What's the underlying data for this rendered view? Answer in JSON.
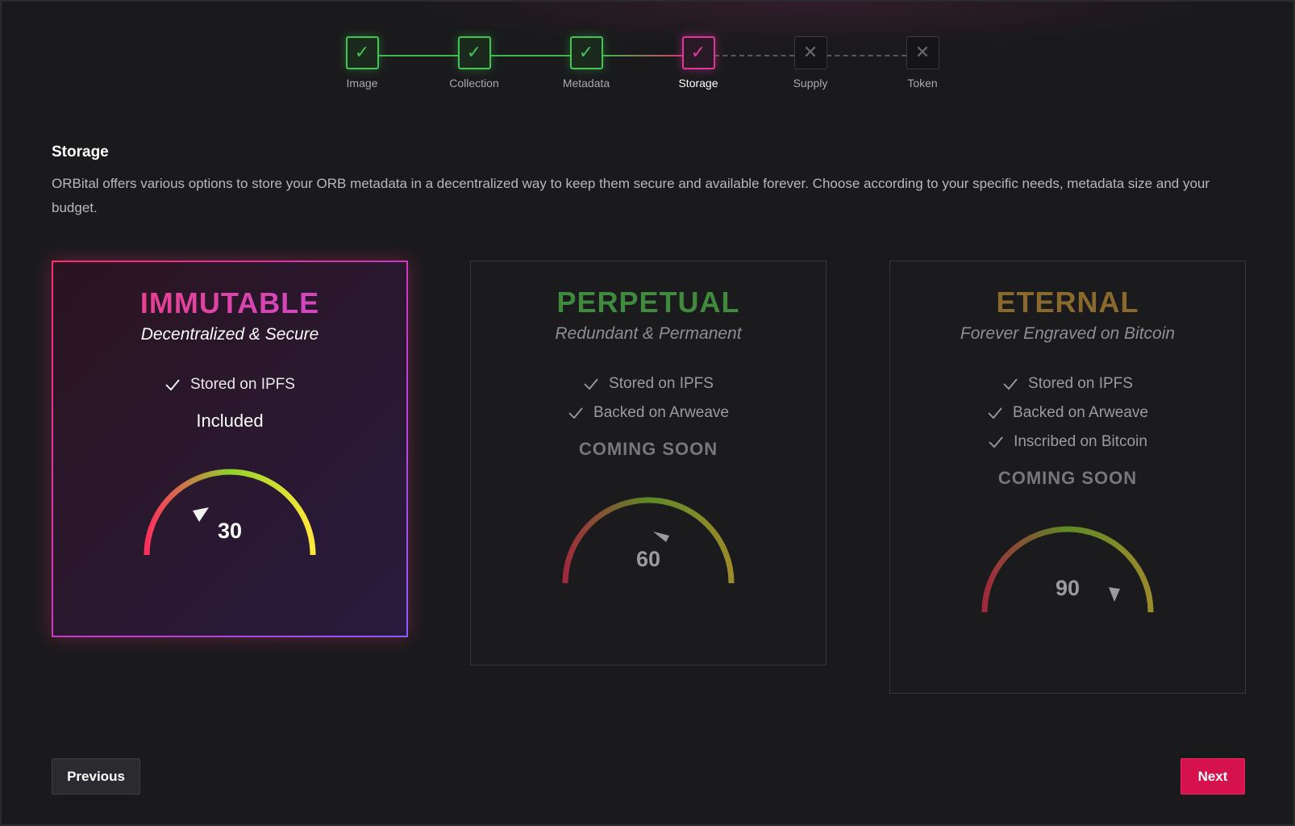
{
  "stepper": {
    "steps": [
      {
        "label": "Image",
        "state": "done"
      },
      {
        "label": "Collection",
        "state": "done"
      },
      {
        "label": "Metadata",
        "state": "done"
      },
      {
        "label": "Storage",
        "state": "active"
      },
      {
        "label": "Supply",
        "state": "todo"
      },
      {
        "label": "Token",
        "state": "todo"
      }
    ]
  },
  "section": {
    "title": "Storage",
    "description": "ORBital offers various options to store your ORB metadata in a decentralized way to keep them secure and available forever. Choose according to your specific needs, metadata size and your budget."
  },
  "cards": [
    {
      "title": "IMMUTABLE",
      "subtitle": "Decentralized & Secure",
      "features": [
        "Stored on IPFS"
      ],
      "status": "Included",
      "gauge_value": "30",
      "selected": true
    },
    {
      "title": "PERPETUAL",
      "subtitle": "Redundant & Permanent",
      "features": [
        "Stored on IPFS",
        "Backed on Arweave"
      ],
      "status": "COMING SOON",
      "gauge_value": "60",
      "selected": false
    },
    {
      "title": "ETERNAL",
      "subtitle": "Forever Engraved on Bitcoin",
      "features": [
        "Stored on IPFS",
        "Backed on Arweave",
        "Inscribed on Bitcoin"
      ],
      "status": "COMING SOON",
      "gauge_value": "90",
      "selected": false
    }
  ],
  "nav": {
    "previous_label": "Previous",
    "next_label": "Next"
  },
  "icons": {
    "step_done": "check-icon",
    "step_todo": "cross-icon",
    "feature": "check-icon"
  },
  "colors": {
    "accent_pink": "#e0379f",
    "done_green": "#41c653",
    "next_button": "#d5124d",
    "immutable_title": "#f03e7c",
    "perpetual_title": "#3f8a3c",
    "eternal_title": "#8a6a2c"
  }
}
